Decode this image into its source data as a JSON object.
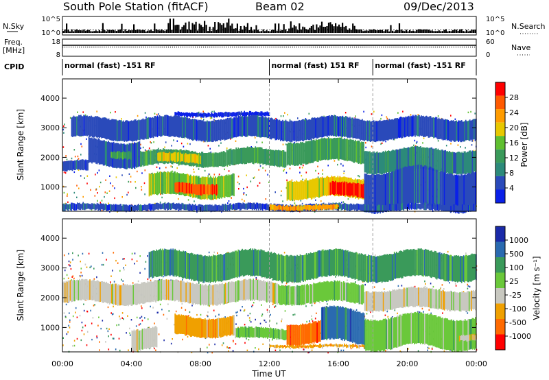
{
  "header": {
    "station": "South Pole Station (fitACF)",
    "beam": "Beam 02",
    "date": "09/Dec/2013"
  },
  "top_panels": {
    "nsky_label": "N.Sky",
    "nsearch_label": "N.Search",
    "nsky_ticks": [
      "10^5",
      "10^0"
    ],
    "nsearch_ticks": [
      "10^5",
      "10^0"
    ],
    "freq_label_1": "Freq.",
    "freq_label_2": "[MHz]",
    "freq_ticks": [
      "18",
      "8"
    ],
    "nave_label": "Nave",
    "nave_ticks": [
      "60",
      "0"
    ],
    "cpid_label": "CPID",
    "cpid_segments": [
      {
        "label": "normal (fast) -151 RF",
        "start_hour": 0,
        "end_hour": 12
      },
      {
        "label": "normal (fast) 151 RF",
        "start_hour": 12,
        "end_hour": 18
      },
      {
        "label": "normal (fast) -151 RF",
        "start_hour": 18,
        "end_hour": 24
      }
    ]
  },
  "chart_data": [
    {
      "type": "heatmap",
      "panel": "power",
      "ylabel": "Slant Range [km]",
      "ylim": [
        180,
        4650
      ],
      "yticks": [
        "1000",
        "2000",
        "3000",
        "4000"
      ],
      "xlim": [
        0,
        24
      ],
      "colorbar_label": "Power [dB]",
      "colorbar_ticks": [
        "28",
        "24",
        "20",
        "16",
        "12",
        "8",
        "4"
      ],
      "colors": [
        "#ff0000",
        "#ff5a00",
        "#ff9c00",
        "#e8c800",
        "#5fbf30",
        "#3a9a5a",
        "#2c8a7a",
        "#2a4aba",
        "#0a20e8"
      ],
      "bands": [
        {
          "x": [
            0.0,
            1.5
          ],
          "y": [
            1500,
            1900
          ],
          "level": 7
        },
        {
          "x": [
            1.5,
            4.5
          ],
          "y": [
            1700,
            2600
          ],
          "level": 7
        },
        {
          "x": [
            2.8,
            4.0
          ],
          "y": [
            1950,
            2250
          ],
          "level": 5
        },
        {
          "x": [
            4.5,
            9.5
          ],
          "y": [
            1700,
            2250
          ],
          "level": 5
        },
        {
          "x": [
            5.5,
            8.0
          ],
          "y": [
            1800,
            2150
          ],
          "level": 3
        },
        {
          "x": [
            9.5,
            13.0
          ],
          "y": [
            1700,
            2300
          ],
          "level": 5
        },
        {
          "x": [
            13.0,
            17.5
          ],
          "y": [
            1800,
            2600
          ],
          "level": 5
        },
        {
          "x": [
            17.5,
            24.0
          ],
          "y": [
            1500,
            2300
          ],
          "level": 6
        },
        {
          "x": [
            5.0,
            10.0
          ],
          "y": [
            650,
            1450
          ],
          "level": 4
        },
        {
          "x": [
            6.5,
            9.0
          ],
          "y": [
            750,
            1150
          ],
          "level": 1
        },
        {
          "x": [
            13.0,
            17.5
          ],
          "y": [
            600,
            1300
          ],
          "level": 3
        },
        {
          "x": [
            15.5,
            17.5
          ],
          "y": [
            650,
            1150
          ],
          "level": 0
        },
        {
          "x": [
            17.5,
            24.0
          ],
          "y": [
            250,
            1600
          ],
          "level": 7
        },
        {
          "x": [
            0.0,
            24.0
          ],
          "y": [
            180,
            450
          ],
          "level": 7
        },
        {
          "x": [
            12.0,
            16.0
          ],
          "y": [
            200,
            420
          ],
          "level": 2
        },
        {
          "x": [
            6.5,
            12.0
          ],
          "y": [
            3350,
            3550
          ],
          "level": 8
        },
        {
          "x": [
            0.5,
            24.0
          ],
          "y": [
            2600,
            3350
          ],
          "level": 7
        }
      ]
    },
    {
      "type": "heatmap",
      "panel": "velocity",
      "ylabel": "Slant Range [km]",
      "ylim": [
        180,
        4650
      ],
      "yticks": [
        "1000",
        "2000",
        "3000",
        "4000"
      ],
      "xlim": [
        0,
        24
      ],
      "xlabel": "Time UT",
      "xticks": [
        "00:00",
        "04:00",
        "08:00",
        "12:00",
        "16:00",
        "20:00",
        "00:00"
      ],
      "colorbar_label": "Velocity [m s⁻¹]",
      "colorbar_ticks": [
        "1000",
        "500",
        "100",
        "25",
        "-25",
        "-100",
        "-500",
        "-1000"
      ],
      "colors": [
        "#1a2aa8",
        "#2a6ab0",
        "#3a9a5a",
        "#6ac83a",
        "#c8c8c0",
        "#f0a000",
        "#ff6a00",
        "#ff0000"
      ],
      "bands": [
        {
          "x": [
            0.0,
            12.5
          ],
          "y": [
            1800,
            2550
          ],
          "level": 4
        },
        {
          "x": [
            12.5,
            17.5
          ],
          "y": [
            1800,
            2500
          ],
          "level": 3
        },
        {
          "x": [
            17.5,
            24.0
          ],
          "y": [
            1600,
            2300
          ],
          "level": 4
        },
        {
          "x": [
            6.5,
            10.0
          ],
          "y": [
            700,
            1400
          ],
          "level": 5
        },
        {
          "x": [
            10.0,
            13.0
          ],
          "y": [
            600,
            1000
          ],
          "level": 3
        },
        {
          "x": [
            13.0,
            15.0
          ],
          "y": [
            450,
            1200
          ],
          "level": 6
        },
        {
          "x": [
            15.0,
            17.5
          ],
          "y": [
            450,
            1600
          ],
          "level": 1
        },
        {
          "x": [
            17.5,
            24.0
          ],
          "y": [
            300,
            1400
          ],
          "level": 3
        },
        {
          "x": [
            23.0,
            24.0
          ],
          "y": [
            550,
            800
          ],
          "level": 4
        },
        {
          "x": [
            4.0,
            5.5
          ],
          "y": [
            250,
            1000
          ],
          "level": 4
        },
        {
          "x": [
            12.0,
            17.5
          ],
          "y": [
            300,
            450
          ],
          "level": 5
        },
        {
          "x": [
            5.0,
            24.0
          ],
          "y": [
            2600,
            3550
          ],
          "level": 2
        }
      ]
    }
  ]
}
